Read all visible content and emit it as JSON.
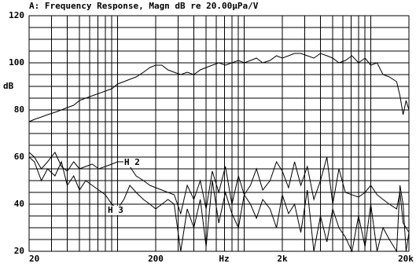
{
  "chart_data": {
    "type": "line",
    "title": "A: Frequency Response, Magn dB re 20.00µPa/V",
    "x_label": "Hz",
    "y_label": "dB",
    "xscale": "log",
    "grid": true,
    "color": "#000000",
    "xlim": [
      20,
      20000
    ],
    "ylim": [
      20,
      120
    ],
    "xticks": [
      20,
      200,
      {
        "value": 2000,
        "label": "2k"
      },
      {
        "value": 20000,
        "label": "20k"
      }
    ],
    "yticks": [
      20,
      40,
      60,
      80,
      100,
      120
    ],
    "xgrid": [
      20,
      30,
      40,
      50,
      60,
      70,
      80,
      90,
      100,
      200,
      300,
      400,
      500,
      600,
      700,
      800,
      900,
      1000,
      2000,
      3000,
      4000,
      5000,
      6000,
      7000,
      8000,
      9000,
      10000,
      20000
    ],
    "ygrid": [
      20,
      25,
      30,
      35,
      40,
      45,
      50,
      55,
      60,
      65,
      70,
      75,
      80,
      85,
      90,
      95,
      100,
      105,
      110,
      115,
      120
    ],
    "x": [
      20,
      22,
      25,
      28,
      32,
      36,
      40,
      45,
      50,
      56,
      63,
      71,
      80,
      90,
      100,
      112,
      125,
      140,
      160,
      180,
      200,
      224,
      250,
      280,
      315,
      355,
      400,
      450,
      500,
      560,
      630,
      710,
      800,
      900,
      1000,
      1120,
      1250,
      1400,
      1600,
      1800,
      2000,
      2240,
      2500,
      2800,
      3150,
      3550,
      4000,
      4500,
      5000,
      5600,
      6300,
      7100,
      8000,
      9000,
      10000,
      11200,
      12500,
      14000,
      16000,
      17000,
      18000,
      19000,
      20000
    ],
    "series": [
      {
        "values": [
          75,
          76,
          77,
          78,
          79,
          80,
          81,
          82,
          84,
          85,
          86,
          87,
          88,
          89,
          91,
          92,
          93,
          94,
          96,
          98,
          99,
          99,
          97,
          96,
          95,
          96,
          95,
          97,
          98,
          99,
          100,
          99,
          100,
          101,
          100,
          101,
          102,
          100,
          101,
          103,
          102,
          103,
          104,
          104,
          103,
          102,
          104,
          103,
          102,
          100,
          101,
          103,
          100,
          102,
          99,
          100,
          95,
          94,
          92,
          86,
          78,
          84,
          80
        ]
      },
      {
        "name": "H 2",
        "values": [
          62,
          60,
          55,
          58,
          62,
          56,
          54,
          58,
          55,
          56,
          57,
          55,
          56,
          57,
          58,
          58,
          56,
          52,
          50,
          48,
          47,
          46,
          45,
          44,
          36,
          48,
          42,
          50,
          38,
          54,
          45,
          56,
          40,
          52,
          44,
          48,
          55,
          46,
          50,
          58,
          54,
          47,
          58,
          48,
          56,
          42,
          50,
          60,
          40,
          55,
          45,
          44,
          43,
          45,
          48,
          44,
          42,
          40,
          38,
          45,
          32,
          30,
          28
        ]
      },
      {
        "name": "H 3",
        "values": [
          60,
          58,
          50,
          55,
          52,
          58,
          48,
          52,
          46,
          50,
          48,
          46,
          44,
          40,
          38,
          42,
          48,
          45,
          42,
          40,
          38,
          40,
          42,
          40,
          20,
          38,
          30,
          42,
          22,
          50,
          32,
          45,
          36,
          30,
          44,
          40,
          34,
          42,
          38,
          30,
          44,
          36,
          40,
          28,
          46,
          20,
          35,
          24,
          38,
          30,
          26,
          20,
          35,
          22,
          40,
          20,
          30,
          25,
          20,
          48,
          40,
          20,
          28
        ]
      }
    ]
  }
}
